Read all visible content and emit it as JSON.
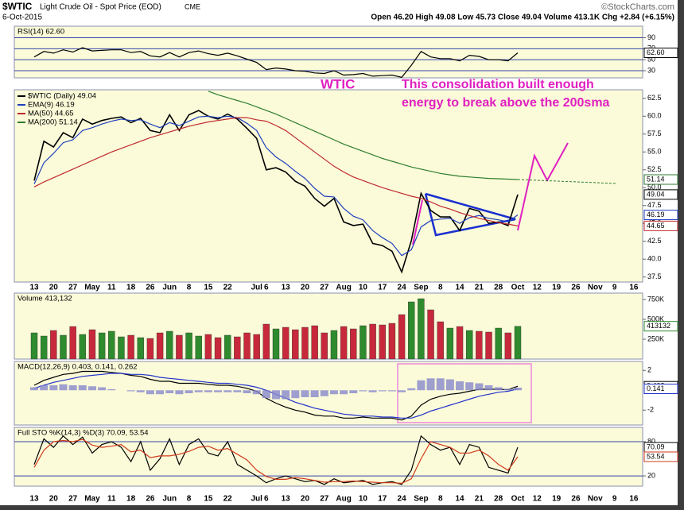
{
  "header": {
    "symbol": "$WTIC",
    "name": "Light Crude Oil - Spot Price (EOD)",
    "exchange": "CME",
    "date": "6-Oct-2015",
    "quote": "Open 46.20 High 49.08 Low 45.73 Close 49.04 Volume 413.1K Chg +2.84 (+6.15%)",
    "credit": "©StockCharts.com"
  },
  "annotations": [
    "WTIC",
    "This consolidation built enough",
    "energy to break above the 200sma"
  ],
  "chart_data": [
    {
      "type": "line",
      "title": "RSI(14) 62.60",
      "ylim": [
        17,
        111
      ],
      "yticks": [
        90,
        70,
        50,
        30
      ],
      "grid": true,
      "series": [
        {
          "color": "#000000",
          "last_label": "62.60",
          "values": [
            55,
            65,
            62,
            68,
            64,
            72,
            66,
            67,
            68,
            68,
            63,
            65,
            57,
            55,
            63,
            55,
            63,
            66,
            61,
            58,
            62,
            57,
            51,
            45,
            32,
            35,
            33,
            30,
            29,
            26,
            25,
            30,
            22,
            23,
            25,
            20,
            21,
            22,
            18,
            40,
            65,
            55,
            52,
            52,
            48,
            58,
            56,
            50,
            50,
            48,
            62.6,
            null,
            null,
            null,
            null,
            null,
            null,
            null,
            null,
            null,
            null,
            null,
            null,
            null
          ]
        }
      ]
    },
    {
      "type": "line",
      "ylim": [
        36.8,
        63.7
      ],
      "yticks": [
        37.5,
        {
          "value": 40,
          "label": "40.0"
        },
        42.5,
        {
          "value": 45,
          "label": "45.0"
        },
        47.5,
        {
          "value": 50,
          "label": "50.0"
        },
        52.5,
        {
          "value": 55,
          "label": "55.0"
        },
        57.5,
        {
          "value": 60,
          "label": "60.0"
        },
        62.5
      ],
      "grid": false,
      "legend": "upper-left",
      "categories": [
        "13",
        null,
        "20",
        null,
        "27",
        null,
        "May",
        null,
        "11",
        null,
        "18",
        null,
        "26",
        null,
        "Jun",
        null,
        "8",
        null,
        "15",
        null,
        "22",
        null,
        null,
        "Jul",
        "6",
        null,
        "13",
        null,
        "20",
        null,
        "27",
        null,
        "Aug",
        null,
        "10",
        null,
        "17",
        null,
        "24",
        null,
        "Sep",
        null,
        "8",
        null,
        "14",
        null,
        "21",
        null,
        "28",
        null,
        "Oct",
        null,
        "12",
        null,
        "19",
        null,
        "26",
        null,
        "Nov",
        null,
        "9",
        null,
        "16",
        null
      ],
      "series": [
        {
          "name": "$WTIC (Daily) 49.04",
          "color": "#000000",
          "values": [
            51.0,
            56.5,
            55.7,
            57.7,
            57.0,
            59.6,
            58.9,
            59.4,
            59.7,
            59.9,
            59.1,
            59.7,
            58.0,
            57.7,
            60.2,
            58.0,
            60.2,
            60.8,
            60.0,
            59.6,
            60.3,
            59.6,
            58.3,
            56.9,
            52.5,
            52.8,
            52.2,
            50.9,
            50.2,
            48.5,
            47.4,
            48.5,
            45.2,
            44.7,
            44.9,
            42.2,
            41.9,
            41.1,
            38.2,
            42.6,
            49.2,
            46.8,
            45.9,
            45.9,
            44.0,
            47.1,
            46.7,
            45.0,
            45.2,
            44.7,
            49.04,
            null,
            null,
            null,
            null,
            null,
            null,
            null,
            null,
            null,
            null,
            null,
            null,
            null
          ]
        },
        {
          "name": "EMA(9) 46.19",
          "color": "#1f3fbf",
          "values": [
            50.5,
            53.5,
            54.8,
            56.3,
            56.7,
            58.0,
            58.4,
            58.9,
            59.3,
            59.6,
            59.4,
            59.5,
            58.9,
            58.4,
            59.1,
            58.7,
            59.3,
            59.9,
            60.0,
            59.8,
            60.0,
            59.8,
            59.0,
            58.0,
            55.6,
            54.3,
            53.4,
            52.3,
            51.3,
            49.9,
            48.8,
            48.7,
            47.1,
            46.0,
            45.5,
            44.0,
            43.0,
            42.2,
            40.5,
            41.3,
            44.5,
            45.4,
            45.6,
            45.7,
            45.0,
            45.8,
            46.1,
            45.7,
            45.5,
            45.2,
            46.19,
            null,
            null,
            null,
            null,
            null,
            null,
            null,
            null,
            null,
            null,
            null,
            null,
            null
          ]
        },
        {
          "name": "MA(50) 44.65",
          "color": "#c0282d",
          "values": [
            50.1,
            50.8,
            51.4,
            52.0,
            52.6,
            53.2,
            53.8,
            54.4,
            55.0,
            55.5,
            56.0,
            56.5,
            57.0,
            57.4,
            57.8,
            58.2,
            58.6,
            58.9,
            59.2,
            59.4,
            59.6,
            59.8,
            59.8,
            59.5,
            59.3,
            58.7,
            58.0,
            57.0,
            56.0,
            55.0,
            54.0,
            53.0,
            52.2,
            51.5,
            51.0,
            50.5,
            50.0,
            49.6,
            49.2,
            48.8,
            48.5,
            48.0,
            47.4,
            47.0,
            46.5,
            46.1,
            45.7,
            45.4,
            45.1,
            44.9,
            44.65,
            null,
            null,
            null,
            null,
            null,
            null,
            null,
            null,
            null,
            null,
            null,
            null,
            null
          ]
        },
        {
          "name": "MA(200) 51.14",
          "color": "#2e7d2e",
          "values": [
            null,
            null,
            null,
            null,
            null,
            null,
            null,
            null,
            null,
            null,
            null,
            null,
            null,
            null,
            null,
            null,
            null,
            null,
            63.5,
            63.0,
            62.6,
            62.2,
            61.8,
            61.3,
            60.8,
            60.3,
            59.7,
            59.1,
            58.5,
            57.9,
            57.3,
            56.7,
            56.1,
            55.6,
            55.1,
            54.6,
            54.1,
            53.7,
            53.3,
            52.9,
            52.6,
            52.3,
            52.0,
            51.8,
            51.6,
            51.5,
            51.4,
            51.3,
            51.25,
            51.2,
            51.14,
            null,
            null,
            null,
            null,
            null,
            null,
            null,
            null,
            null,
            null,
            null,
            null,
            null
          ]
        }
      ]
    },
    {
      "type": "bar",
      "title": "Volume 413,132",
      "ylim": [
        0,
        830000
      ],
      "up_color": "#2e8b2e",
      "down_color": "#c8283c",
      "yticks": [
        {
          "value": 750000,
          "label": "750K"
        },
        {
          "value": 500000,
          "label": "500K"
        },
        {
          "value": 250000,
          "label": "250K"
        }
      ],
      "grid": false,
      "series": [
        {
          "values": [
            330000,
            290000,
            360000,
            300000,
            410000,
            310000,
            370000,
            330000,
            350000,
            280000,
            300000,
            270000,
            260000,
            330000,
            350000,
            300000,
            330000,
            290000,
            310000,
            270000,
            300000,
            280000,
            330000,
            310000,
            440000,
            380000,
            400000,
            370000,
            400000,
            420000,
            330000,
            360000,
            410000,
            380000,
            420000,
            440000,
            430000,
            450000,
            560000,
            720000,
            760000,
            620000,
            470000,
            390000,
            410000,
            360000,
            350000,
            340000,
            390000,
            330000,
            413132,
            null,
            null,
            null,
            null,
            null,
            null,
            null,
            null,
            null,
            null,
            null,
            null,
            null
          ]
        }
      ]
    },
    {
      "type": "line",
      "title": "MACD(12,26,9) 0.403, 0.141, 0.262",
      "ylim": [
        -3.5,
        2.9
      ],
      "yticks": [
        2,
        -2
      ],
      "grid": false,
      "series": [
        {
          "color": "#000000",
          "values": [
            0.5,
            1.0,
            1.3,
            1.6,
            1.7,
            1.9,
            1.9,
            1.9,
            1.8,
            1.7,
            1.5,
            1.4,
            1.1,
            0.9,
            0.9,
            0.7,
            0.7,
            0.7,
            0.6,
            0.5,
            0.5,
            0.4,
            0.2,
            -0.1,
            -0.8,
            -1.3,
            -1.7,
            -2.0,
            -2.2,
            -2.5,
            -2.6,
            -2.6,
            -2.8,
            -2.8,
            -2.7,
            -2.8,
            -2.8,
            -2.8,
            -3.0,
            -2.6,
            -1.5,
            -0.9,
            -0.6,
            -0.4,
            -0.3,
            -0.1,
            0.1,
            0.1,
            0.1,
            0.05,
            0.403,
            null,
            null,
            null,
            null,
            null,
            null,
            null,
            null,
            null,
            null,
            null,
            null,
            null
          ]
        },
        {
          "color": "#2233cc",
          "values": [
            0.2,
            0.5,
            0.8,
            1.0,
            1.2,
            1.4,
            1.5,
            1.6,
            1.7,
            1.7,
            1.6,
            1.6,
            1.5,
            1.3,
            1.2,
            1.1,
            1.0,
            0.9,
            0.8,
            0.7,
            0.7,
            0.6,
            0.5,
            0.3,
            0.0,
            -0.4,
            -0.8,
            -1.2,
            -1.5,
            -1.8,
            -2.0,
            -2.2,
            -2.4,
            -2.5,
            -2.6,
            -2.6,
            -2.7,
            -2.7,
            -2.8,
            -2.8,
            -2.5,
            -2.1,
            -1.8,
            -1.5,
            -1.2,
            -0.9,
            -0.6,
            -0.4,
            -0.2,
            -0.1,
            0.141,
            null,
            null,
            null,
            null,
            null,
            null,
            null,
            null,
            null,
            null,
            null,
            null,
            null
          ]
        },
        {
          "style": "histogram",
          "color": "#8888cc",
          "values": [
            0.3,
            0.5,
            0.5,
            0.6,
            0.5,
            0.5,
            0.4,
            0.3,
            0.1,
            0,
            -0.1,
            -0.2,
            -0.4,
            -0.4,
            -0.3,
            -0.4,
            -0.3,
            -0.2,
            -0.2,
            -0.2,
            -0.2,
            -0.2,
            -0.3,
            -0.4,
            -0.8,
            -0.9,
            -0.9,
            -0.8,
            -0.7,
            -0.7,
            -0.6,
            -0.4,
            -0.4,
            -0.3,
            -0.1,
            -0.2,
            -0.1,
            -0.1,
            -0.2,
            0.2,
            1.0,
            1.2,
            1.2,
            1.1,
            0.9,
            0.8,
            0.7,
            0.5,
            0.3,
            0.15,
            0.262,
            null,
            null,
            null,
            null,
            null,
            null,
            null,
            null,
            null,
            null,
            null,
            null,
            null
          ]
        }
      ]
    },
    {
      "type": "line",
      "title": "Full STO %K(14,3) %D(3) 70.09, 53.54",
      "ylim": [
        2,
        105
      ],
      "yticks": [
        80,
        20
      ],
      "grid": true,
      "series": [
        {
          "color": "#000000",
          "values": [
            40,
            85,
            70,
            90,
            75,
            88,
            60,
            75,
            80,
            70,
            45,
            80,
            30,
            50,
            85,
            40,
            75,
            85,
            60,
            55,
            80,
            40,
            30,
            20,
            8,
            15,
            20,
            15,
            10,
            12,
            5,
            15,
            8,
            10,
            12,
            5,
            8,
            10,
            5,
            30,
            90,
            75,
            65,
            70,
            40,
            75,
            70,
            35,
            30,
            25,
            70.09,
            null,
            null,
            null,
            null,
            null,
            null,
            null,
            null,
            null,
            null,
            null,
            null,
            null
          ]
        },
        {
          "color": "#d03a1a",
          "values": [
            35,
            65,
            80,
            82,
            80,
            84,
            74,
            70,
            72,
            75,
            62,
            65,
            52,
            55,
            55,
            58,
            63,
            70,
            72,
            65,
            68,
            58,
            48,
            30,
            19,
            14,
            14,
            17,
            15,
            12,
            9,
            10,
            10,
            11,
            10,
            9,
            8,
            8,
            7,
            15,
            50,
            80,
            75,
            70,
            60,
            60,
            65,
            55,
            40,
            30,
            53.54,
            null,
            null,
            null,
            null,
            null,
            null,
            null,
            null,
            null,
            null,
            null,
            null,
            null
          ]
        }
      ]
    }
  ]
}
